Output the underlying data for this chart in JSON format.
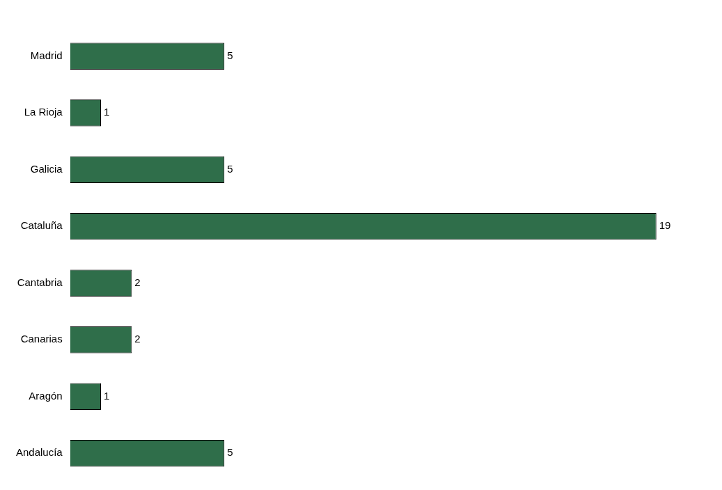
{
  "chart_data": {
    "type": "bar",
    "orientation": "horizontal",
    "categories": [
      "Madrid",
      "La Rioja",
      "Galicia",
      "Cataluña",
      "Cantabria",
      "Canarias",
      "Aragón",
      "Andalucía"
    ],
    "values": [
      5,
      1,
      5,
      19,
      2,
      2,
      1,
      5
    ],
    "color": "#2f6e4a",
    "data_labels": true,
    "grid": false,
    "legend": false,
    "tick_labels": "y"
  }
}
